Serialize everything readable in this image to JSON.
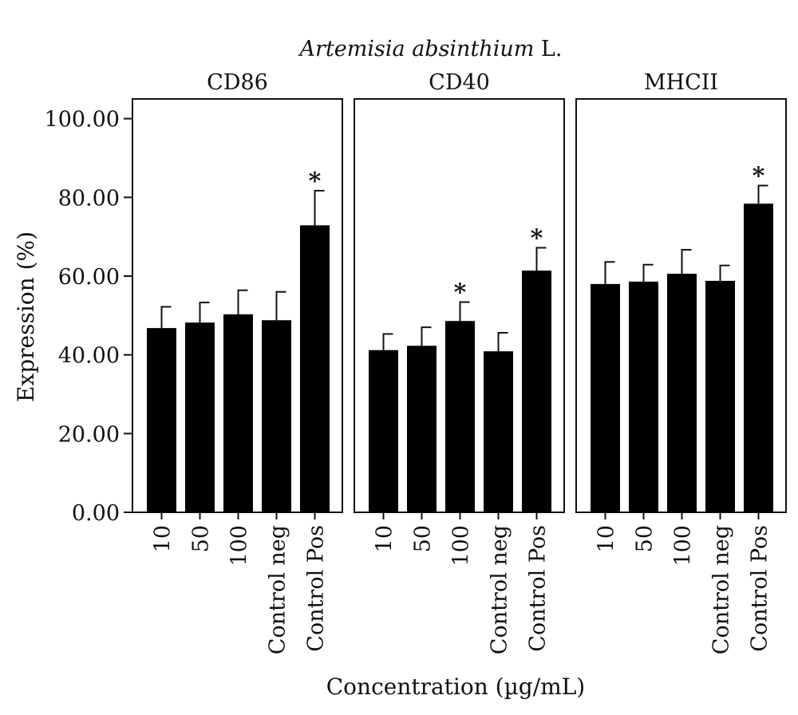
{
  "figure": {
    "title_italic": "Artemisia absinthium",
    "title_suffix": " L.",
    "xlabel": "Concentration (µg/mL)",
    "ylabel": "Expression (%)"
  },
  "chart_data": {
    "type": "bar",
    "title": "Artemisia absinthium L.",
    "xlabel": "Concentration (µg/mL)",
    "ylabel": "Expression (%)",
    "ylim": [
      0,
      105
    ],
    "yticks": [
      0,
      20,
      40,
      60,
      80,
      100
    ],
    "ytick_labels": [
      "0.00",
      "20.00",
      "40.00",
      "60.00",
      "80.00",
      "100.00"
    ],
    "categories": [
      "10",
      "50",
      "100",
      "Control neg",
      "Control Pos"
    ],
    "bar_color": "#000000",
    "panels": [
      {
        "name": "CD86",
        "values": [
          46.8,
          48.2,
          50.3,
          48.8,
          72.9
        ],
        "errors": [
          5.4,
          5.1,
          6.1,
          7.2,
          8.8
        ],
        "significant": [
          false,
          false,
          false,
          false,
          true
        ]
      },
      {
        "name": "CD40",
        "values": [
          41.2,
          42.3,
          48.6,
          40.9,
          61.4
        ],
        "errors": [
          4.1,
          4.7,
          4.8,
          4.7,
          5.8
        ],
        "significant": [
          false,
          false,
          true,
          false,
          true
        ]
      },
      {
        "name": "MHCII",
        "values": [
          58.0,
          58.6,
          60.6,
          58.8,
          78.4
        ],
        "errors": [
          5.6,
          4.3,
          6.1,
          3.9,
          4.6
        ],
        "significant": [
          false,
          false,
          false,
          false,
          true
        ]
      }
    ],
    "significance_marker": "*"
  }
}
